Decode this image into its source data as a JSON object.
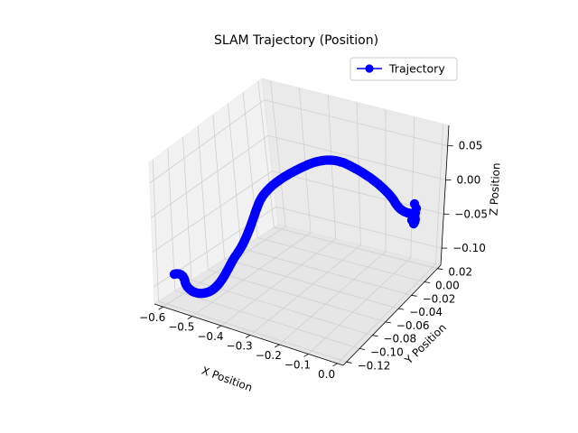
{
  "chart_data": {
    "type": "line",
    "projection": "3d",
    "title": "SLAM Trajectory (Position)",
    "xlabel": "X Position",
    "ylabel": "Y Position",
    "zlabel": "Z Position",
    "xticks": [
      "−0.6",
      "−0.5",
      "−0.4",
      "−0.3",
      "−0.2",
      "−0.1",
      "0.0"
    ],
    "yticks": [
      "−0.12",
      "−0.10",
      "−0.08",
      "−0.06",
      "−0.04",
      "−0.02",
      "0.00",
      "0.02"
    ],
    "zticks": [
      "−0.10",
      "−0.05",
      "0.00",
      "0.05"
    ],
    "xlim": [
      -0.63,
      0.02
    ],
    "ylim": [
      -0.125,
      0.025
    ],
    "zlim": [
      -0.125,
      0.08
    ],
    "grid": true,
    "legend_position": "top-right",
    "series": [
      {
        "name": "Trajectory",
        "color": "#0000ff",
        "marker": "circle"
      }
    ]
  }
}
